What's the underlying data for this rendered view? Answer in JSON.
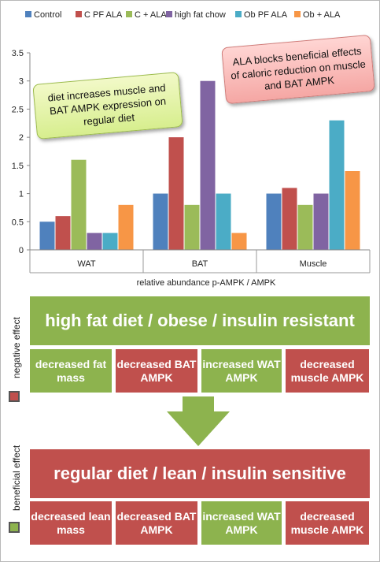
{
  "chart_data": {
    "type": "bar",
    "categories": [
      "WAT",
      "BAT",
      "Muscle"
    ],
    "series": [
      {
        "name": "Control",
        "color": "#4f81bd",
        "values": [
          0.5,
          1.0,
          1.0
        ]
      },
      {
        "name": "C PF ALA",
        "color": "#c0504d",
        "values": [
          0.6,
          2.0,
          1.1
        ]
      },
      {
        "name": "C + ALA",
        "color": "#9bbb59",
        "values": [
          1.6,
          0.8,
          0.8
        ]
      },
      {
        "name": "high fat chow",
        "color": "#8064a2",
        "values": [
          0.3,
          3.0,
          1.0
        ]
      },
      {
        "name": "Ob PF ALA",
        "color": "#4bacc6",
        "values": [
          0.3,
          1.0,
          2.3
        ]
      },
      {
        "name": "Ob + ALA",
        "color": "#f79646",
        "values": [
          0.8,
          0.3,
          1.4
        ]
      }
    ],
    "xlabel": "relative abundance p-AMPK / AMPK",
    "ylim": [
      0,
      3.5
    ],
    "yticks": [
      "0",
      "0.5",
      "1",
      "1.5",
      "2",
      "2.5",
      "3",
      "3.5"
    ],
    "grid": false,
    "legend": "top",
    "annotations": {
      "green": "diet increases muscle and BAT AMPK expression on regular diet",
      "red": "ALA blocks beneficial effects of caloric reduction on muscle and BAT AMPK"
    }
  },
  "diagram": {
    "top_box": "high fat diet / obese / insulin resistant",
    "top_cells": [
      {
        "text": "decreased fat mass",
        "color": "#8db34e"
      },
      {
        "text": "decreased BAT AMPK",
        "color": "#c0504d"
      },
      {
        "text": "increased WAT AMPK",
        "color": "#8db34e"
      },
      {
        "text": "decreased muscle AMPK",
        "color": "#c0504d"
      }
    ],
    "bottom_box": "regular diet / lean / insulin sensitive",
    "bottom_cells": [
      {
        "text": "decreased lean mass",
        "color": "#c0504d"
      },
      {
        "text": "decreased BAT AMPK",
        "color": "#c0504d"
      },
      {
        "text": "increased WAT AMPK",
        "color": "#8db34e"
      },
      {
        "text": "decreased muscle AMPK",
        "color": "#c0504d"
      }
    ],
    "negative_label": "negative effect",
    "beneficial_label": "beneficial effect",
    "negative_color": "#c0504d",
    "beneficial_color": "#8db34e",
    "arrow_color": "#8db34e"
  }
}
